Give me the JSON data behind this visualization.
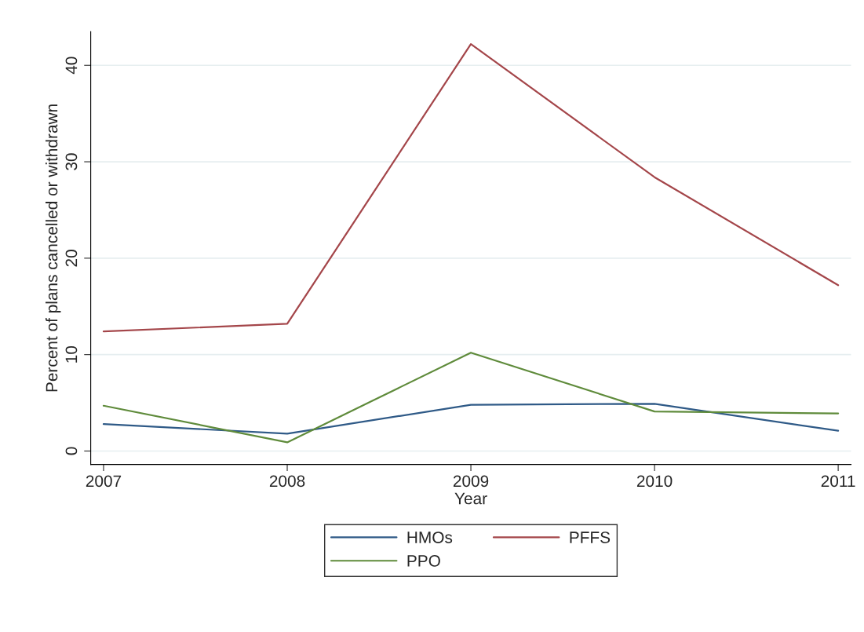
{
  "chart_data": {
    "type": "line",
    "xlabel": "Year",
    "ylabel": "Percent of plans cancelled or withdrawn",
    "x": [
      2007,
      2008,
      2009,
      2010,
      2011
    ],
    "series": [
      {
        "name": "HMOs",
        "color": "#2f5a87",
        "values": [
          2.8,
          1.8,
          4.8,
          4.9,
          2.1
        ]
      },
      {
        "name": "PFFS",
        "color": "#a4464a",
        "values": [
          12.4,
          13.2,
          42.2,
          28.4,
          17.2
        ]
      },
      {
        "name": "PPO",
        "color": "#5f8b3b",
        "values": [
          4.7,
          0.9,
          10.2,
          4.1,
          3.9
        ]
      }
    ],
    "xlim": [
      2006.93,
      2011.07
    ],
    "xticks": [
      2007,
      2008,
      2009,
      2010,
      2011
    ],
    "ylim": [
      -1.4,
      43.5
    ],
    "yticks": [
      0,
      10,
      20,
      30,
      40
    ],
    "grid": "y",
    "legend": "bottom",
    "marker": "none",
    "line_style": "solid"
  }
}
